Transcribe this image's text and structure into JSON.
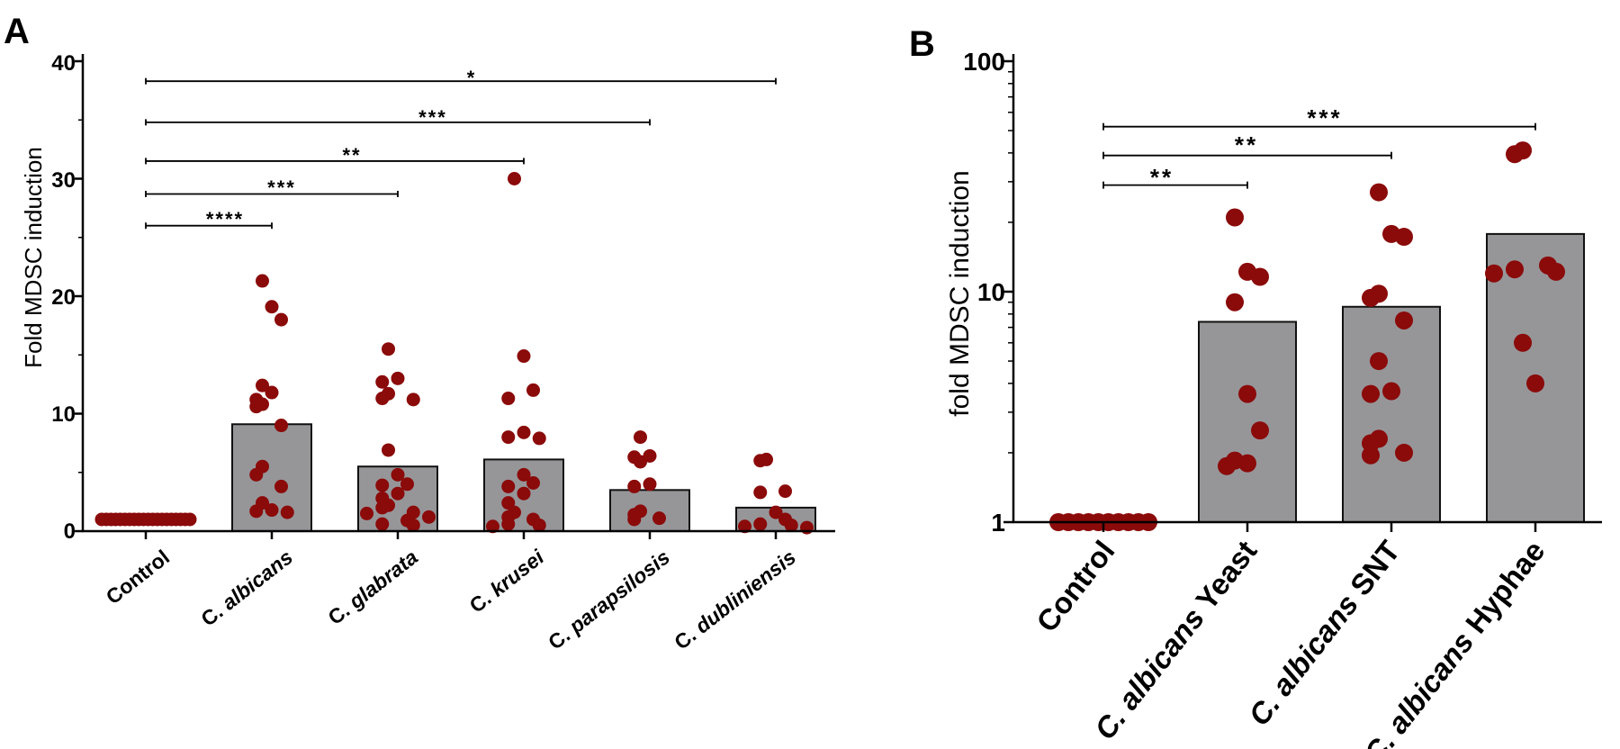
{
  "colors": {
    "bar_fill": "#969699",
    "bar_stroke": "#111111",
    "dot": "#8b0a0a",
    "axis": "#000000"
  },
  "chart_data": [
    {
      "panel": "A",
      "type": "bar",
      "scale": "linear",
      "title": "",
      "ylabel": "Fold MDSC induction",
      "xlabel": "",
      "ylim": [
        0,
        40
      ],
      "yticks": [
        0,
        10,
        20,
        30,
        40
      ],
      "ytick_labels": [
        "0",
        "10",
        "20",
        "30",
        "40"
      ],
      "categories": [
        {
          "prefix": "",
          "name": "Control",
          "italic": false
        },
        {
          "prefix": "C. ",
          "name": "albicans",
          "italic": true
        },
        {
          "prefix": "C. ",
          "name": "glabrata",
          "italic": true
        },
        {
          "prefix": "C. ",
          "name": "krusei",
          "italic": true
        },
        {
          "prefix": "C. ",
          "name": "parapsilosis",
          "italic": true
        },
        {
          "prefix": "C. ",
          "name": "dubliniensis",
          "italic": true
        }
      ],
      "values": [
        1,
        9.1,
        5.5,
        6.1,
        3.5,
        2.0
      ],
      "points": [
        [
          1,
          1,
          1,
          1,
          1,
          1,
          1,
          1,
          1,
          1,
          1,
          1,
          1,
          1,
          1,
          1,
          1,
          1,
          1,
          1
        ],
        [
          21.3,
          19.1,
          18.0,
          12.4,
          11.8,
          11.2,
          10.8,
          10.6,
          9.0,
          5.5,
          4.8,
          3.8,
          2.4,
          1.8,
          1.7,
          1.6
        ],
        [
          15.5,
          13.0,
          12.7,
          11.7,
          11.3,
          11.2,
          6.9,
          4.8,
          4.0,
          3.9,
          3.2,
          2.8,
          2.2,
          2.0,
          1.6,
          1.5,
          1.2,
          0.9,
          0.6,
          0.5
        ],
        [
          30.0,
          14.9,
          12.0,
          11.3,
          8.4,
          8.0,
          7.9,
          4.8,
          4.1,
          3.8,
          3.2,
          2.4,
          1.6,
          1.2,
          1.0,
          0.6,
          0.5,
          0.4
        ],
        [
          8.0,
          6.4,
          6.3,
          5.9,
          4.0,
          3.8,
          1.7,
          1.4,
          1.1,
          1.0
        ],
        [
          6.1,
          6.0,
          3.4,
          3.3,
          1.6,
          1.0,
          0.6,
          0.5,
          0.4,
          0.3
        ]
      ],
      "comparisons": [
        {
          "from": 0,
          "to": 1,
          "label": "****",
          "y": 26
        },
        {
          "from": 0,
          "to": 2,
          "label": "***",
          "y": 28.7
        },
        {
          "from": 0,
          "to": 3,
          "label": "**",
          "y": 31.5
        },
        {
          "from": 0,
          "to": 4,
          "label": "***",
          "y": 34.8
        },
        {
          "from": 0,
          "to": 5,
          "label": "*",
          "y": 38.3
        }
      ]
    },
    {
      "panel": "B",
      "type": "bar",
      "scale": "log",
      "title": "",
      "ylabel": "fold MDSC induction",
      "xlabel": "",
      "ylim": [
        1,
        100
      ],
      "yticks": [
        1,
        10,
        100
      ],
      "ytick_labels": [
        "1",
        "10",
        "100"
      ],
      "categories": [
        {
          "prefix": "",
          "name": "Control",
          "italic": false,
          "suffix": ""
        },
        {
          "prefix": "C. albicans",
          "name": " Yeast",
          "italic": true,
          "suffix": ""
        },
        {
          "prefix": "C. albicans",
          "name": " SNT",
          "italic": true,
          "suffix": ""
        },
        {
          "prefix": "C. albicans",
          "name": " Hyphae",
          "italic": true,
          "suffix": ""
        }
      ],
      "values": [
        1,
        7.4,
        8.6,
        17.8
      ],
      "points": [
        [
          1,
          1,
          1,
          1,
          1,
          1,
          1,
          1,
          1,
          1
        ],
        [
          21.0,
          12.2,
          11.6,
          9.0,
          3.6,
          2.5,
          1.85,
          1.8,
          1.75
        ],
        [
          27.0,
          17.8,
          17.3,
          9.8,
          9.4,
          7.5,
          5.0,
          3.7,
          3.6,
          2.3,
          2.2,
          2.0,
          1.95
        ],
        [
          41.0,
          39.5,
          13.0,
          12.5,
          12.2,
          12.0,
          6.0,
          4.0
        ]
      ],
      "comparisons": [
        {
          "from": 0,
          "to": 1,
          "label": "**",
          "y": 29
        },
        {
          "from": 0,
          "to": 2,
          "label": "**",
          "y": 39
        },
        {
          "from": 0,
          "to": 3,
          "label": "***",
          "y": 52
        }
      ]
    }
  ],
  "panelA": {
    "letter": "A",
    "ylabel": "Fold MDSC induction",
    "ytick_labels": [
      "0",
      "10",
      "20",
      "30",
      "40"
    ],
    "sig_labels": [
      "****",
      "***",
      "**",
      "***",
      "*"
    ],
    "cat_prefix": [
      "",
      "C. ",
      "C. ",
      "C. ",
      "C. ",
      "C. "
    ],
    "cat_names": [
      "Control",
      "albicans",
      "glabrata",
      "krusei",
      "parapsilosis",
      "dubliniensis"
    ]
  },
  "panelB": {
    "letter": "B",
    "ylabel": "fold MDSC induction",
    "ytick_labels": [
      "1",
      "10",
      "100"
    ],
    "sig_labels": [
      "**",
      "**",
      "***"
    ],
    "cat_italic": [
      "",
      "C. albicans",
      "C. albicans",
      "C. albicans"
    ],
    "cat_rest": [
      "Control",
      " Yeast",
      " SNT",
      " Hyphae"
    ]
  }
}
